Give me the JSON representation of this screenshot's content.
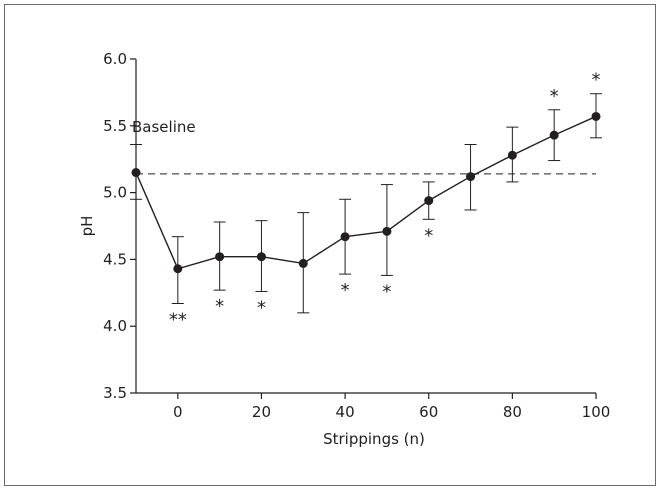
{
  "chart_data": {
    "type": "line",
    "title": "",
    "xlabel": "Strippings (n)",
    "ylabel": "pH",
    "xlim": [
      -10,
      100
    ],
    "ylim": [
      3.5,
      6.0
    ],
    "xticks": [
      0,
      20,
      40,
      60,
      80,
      100
    ],
    "yticks": [
      3.5,
      4.0,
      4.5,
      5.0,
      5.5,
      6.0
    ],
    "ytick_labels": [
      "3.5",
      "4.0",
      "4.5",
      "5.0",
      "5.5",
      "6.0"
    ],
    "grid": false,
    "baseline": {
      "label": "Baseline",
      "value": 5.14
    },
    "series": [
      {
        "points": [
          {
            "x": -10,
            "y": 5.15,
            "err_low": 4.95,
            "err_high": 5.36,
            "sig": ""
          },
          {
            "x": 0,
            "y": 4.43,
            "err_low": 4.17,
            "err_high": 4.67,
            "sig": "**"
          },
          {
            "x": 10,
            "y": 4.52,
            "err_low": 4.27,
            "err_high": 4.78,
            "sig": "*"
          },
          {
            "x": 20,
            "y": 4.52,
            "err_low": 4.26,
            "err_high": 4.79,
            "sig": "*"
          },
          {
            "x": 30,
            "y": 4.47,
            "err_low": 4.1,
            "err_high": 4.85,
            "sig": ""
          },
          {
            "x": 40,
            "y": 4.67,
            "err_low": 4.39,
            "err_high": 4.95,
            "sig": "*"
          },
          {
            "x": 50,
            "y": 4.71,
            "err_low": 4.38,
            "err_high": 5.06,
            "sig": "*"
          },
          {
            "x": 60,
            "y": 4.94,
            "err_low": 4.8,
            "err_high": 5.08,
            "sig": "*"
          },
          {
            "x": 70,
            "y": 5.12,
            "err_low": 4.87,
            "err_high": 5.36,
            "sig": ""
          },
          {
            "x": 80,
            "y": 5.28,
            "err_low": 5.08,
            "err_high": 5.49,
            "sig": ""
          },
          {
            "x": 90,
            "y": 5.43,
            "err_low": 5.24,
            "err_high": 5.62,
            "sig": "*"
          },
          {
            "x": 100,
            "y": 5.57,
            "err_low": 5.41,
            "err_high": 5.74,
            "sig": "*"
          }
        ]
      }
    ]
  }
}
